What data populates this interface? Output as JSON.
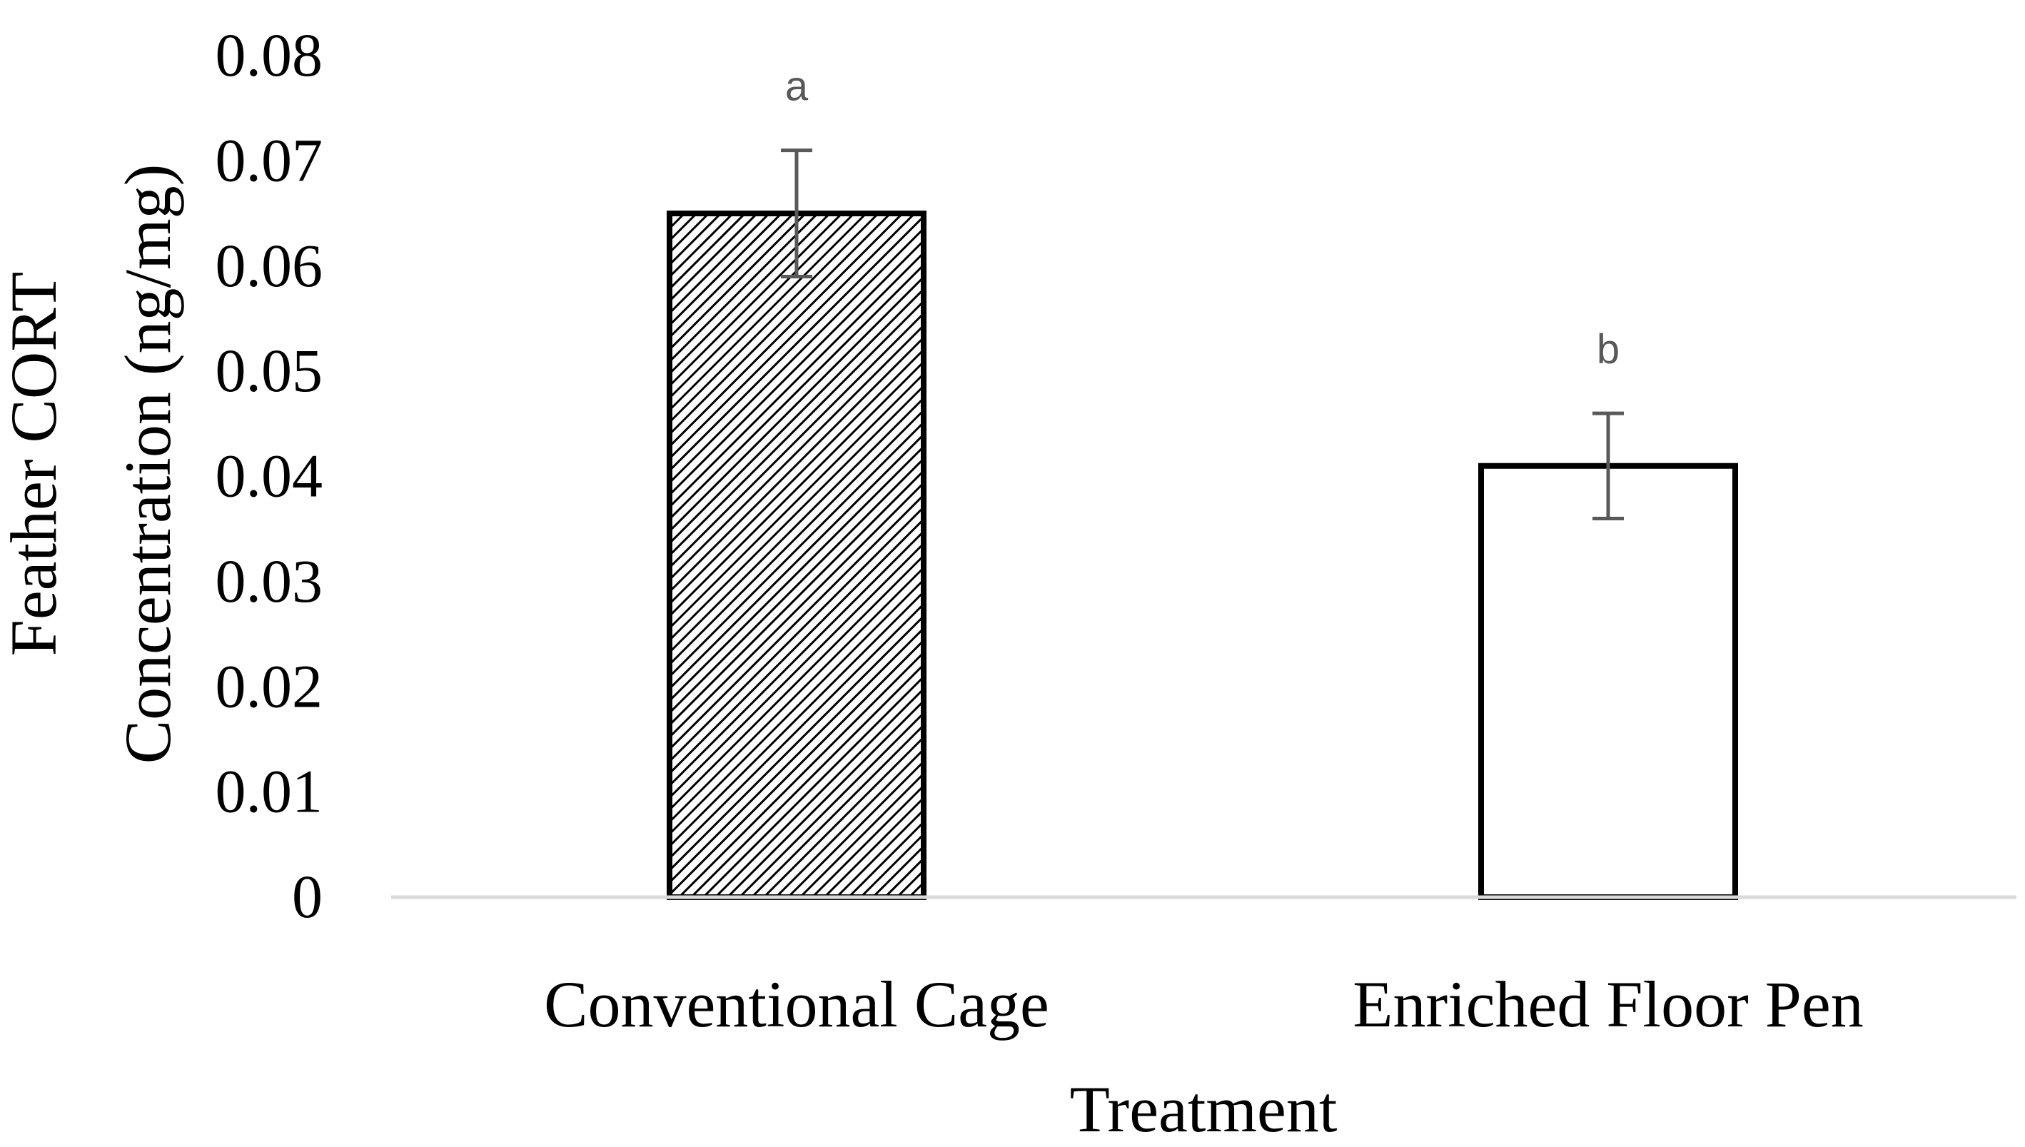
{
  "chart_data": {
    "type": "bar",
    "title": "",
    "categories": [
      "Conventional Cage",
      "Enriched Floor Pen"
    ],
    "values": [
      0.065,
      0.041
    ],
    "error": [
      0.006,
      0.005
    ],
    "significance_letters": [
      "a",
      "b"
    ],
    "patterns": [
      "diagonal-hatch",
      "solid-white"
    ],
    "xlabel": "Treatment",
    "ylabel_lines": [
      "Feather CORT",
      "Concentration (ng/mg)"
    ],
    "ylim": [
      0,
      0.08
    ],
    "yticks": [
      "0",
      "0.01",
      "0.02",
      "0.03",
      "0.04",
      "0.05",
      "0.06",
      "0.07",
      "0.08"
    ],
    "grid": false,
    "legend": "none"
  },
  "colors": {
    "bar_stroke": "#000000",
    "bar_fill": "#ffffff",
    "hatch": "#000000",
    "error_bar": "#595959",
    "axis_line": "#d9d9d9"
  }
}
